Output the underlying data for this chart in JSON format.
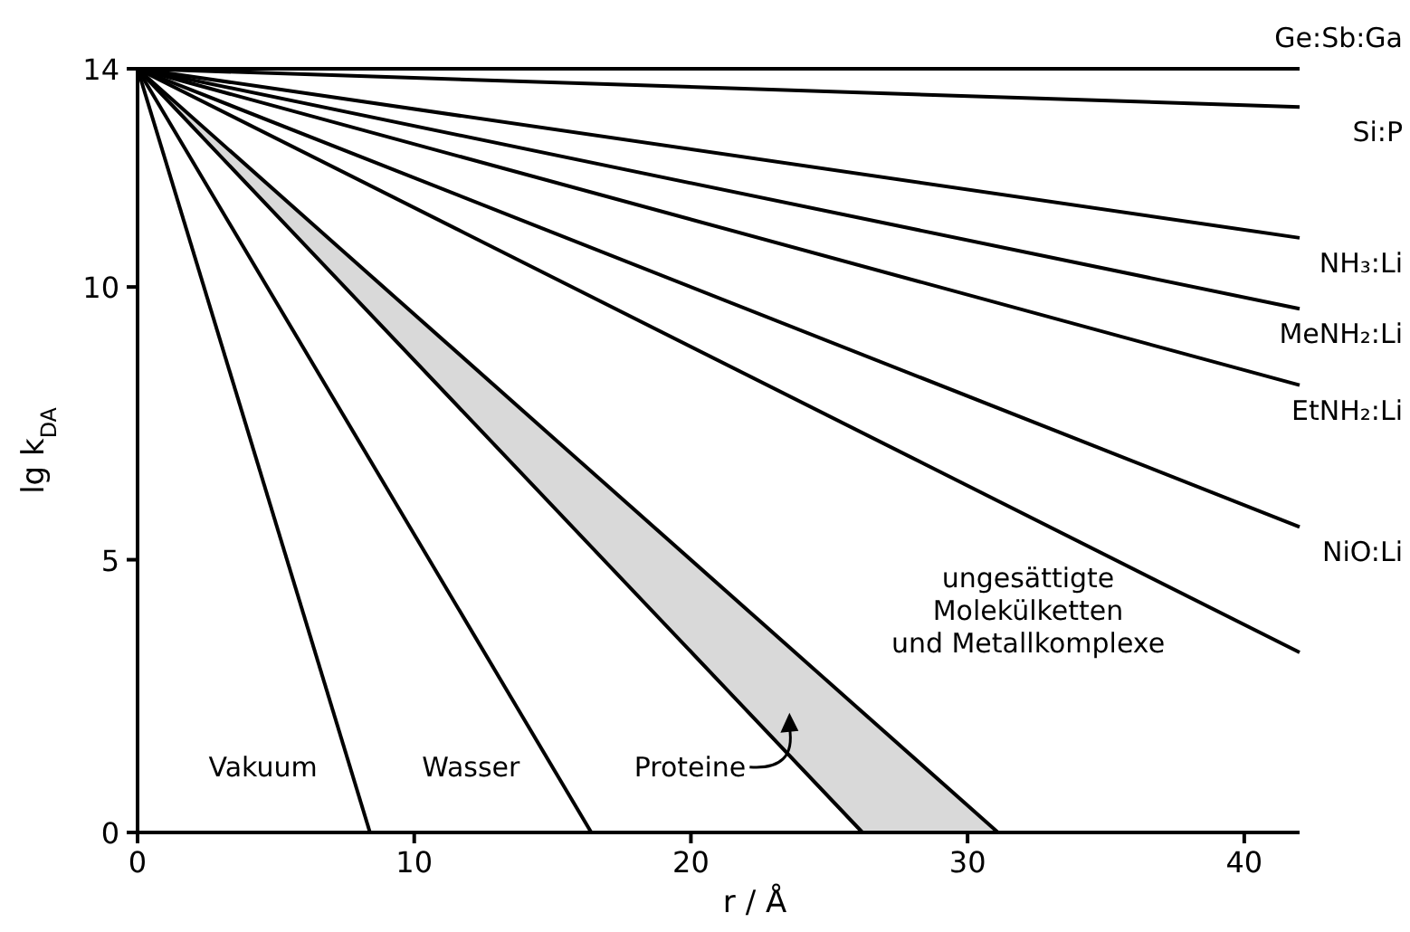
{
  "chart_data": {
    "type": "line",
    "xlabel": "r / Å",
    "ylabel": "lg k$_{DA}$",
    "xlim": [
      0,
      42
    ],
    "ylim": [
      0,
      14
    ],
    "xticks": [
      0,
      10,
      20,
      30,
      40
    ],
    "yticks": [
      0,
      5,
      10,
      14
    ],
    "grid": false,
    "marker": "none",
    "line_style": "solid",
    "series": [
      {
        "name": "Vakuum",
        "color": "#000000",
        "x": [
          0,
          8.4
        ],
        "values": [
          14,
          0
        ]
      },
      {
        "name": "Wasser",
        "color": "#000000",
        "x": [
          0,
          16.4
        ],
        "values": [
          14,
          0
        ]
      },
      {
        "name": "Proteine",
        "color": "#000000",
        "x": [
          0,
          26.2,
          31.1
        ],
        "lower": [
          14,
          0,
          0
        ],
        "upper": [
          14,
          2.2,
          0
        ],
        "values": [
          14,
          0,
          0
        ]
      },
      {
        "color": "#000000",
        "x": [
          0,
          31.1
        ],
        "values": [
          14,
          0
        ]
      },
      {
        "name": "ungesättigte\nMolekülketten\nund Metallkomplexe",
        "color": "#000000",
        "x": [
          0,
          42
        ],
        "values": [
          14,
          3.3
        ]
      },
      {
        "name": "NiO:Li",
        "color": "#000000",
        "x": [
          0,
          42
        ],
        "values": [
          14,
          5.6
        ]
      },
      {
        "name": "EtNH₂:Li",
        "color": "#000000",
        "x": [
          0,
          42
        ],
        "values": [
          14,
          8.2
        ]
      },
      {
        "name": "MeNH₂:Li",
        "color": "#000000",
        "x": [
          0,
          42
        ],
        "values": [
          14,
          9.6
        ]
      },
      {
        "name": "NH₃:Li",
        "color": "#000000",
        "x": [
          0,
          42
        ],
        "values": [
          14,
          10.9
        ]
      },
      {
        "name": "Si:P",
        "color": "#000000",
        "x": [
          0,
          42
        ],
        "values": [
          14,
          13.3
        ]
      },
      {
        "name": "Ge:Sb:Ga",
        "color": "#000000",
        "x": [
          0,
          42
        ],
        "values": [
          14,
          14
        ]
      }
    ]
  }
}
